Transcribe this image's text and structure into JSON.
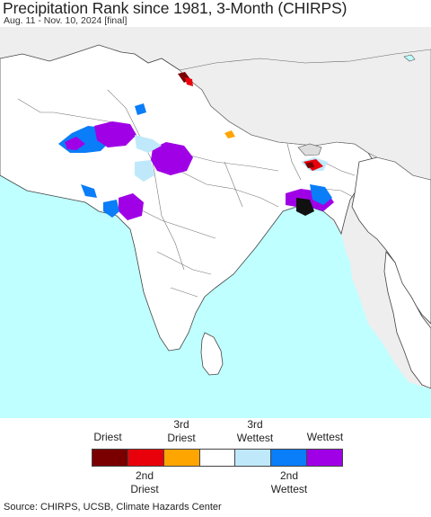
{
  "title": "Precipitation Rank since 1981, 3-Month (CHIRPS)",
  "subtitle": "Aug. 11 - Nov. 10, 2024 [final]",
  "legend": {
    "upper_labels": [
      {
        "line1": "",
        "line2": "Driest"
      },
      {
        "line1": "3rd",
        "line2": "Driest"
      },
      {
        "line1": "3rd",
        "line2": "Wettest"
      },
      {
        "line1": "",
        "line2": "Wettest"
      }
    ],
    "lower_labels": [
      {
        "line1": "2nd",
        "line2": "Driest"
      },
      {
        "line1": "2nd",
        "line2": "Wettest"
      }
    ],
    "colors": [
      "#7a0000",
      "#e8000b",
      "#ffa500",
      "#ffffff",
      "#bfe9fb",
      "#0a7df8",
      "#a000e6"
    ]
  },
  "source": "Source: CHIRPS, UCSB, Climate Hazards Center",
  "map_colors": {
    "land": "#ffffff",
    "ocean": "#bfffff",
    "outside_region": "#eeeeee",
    "borders": "#555555"
  }
}
